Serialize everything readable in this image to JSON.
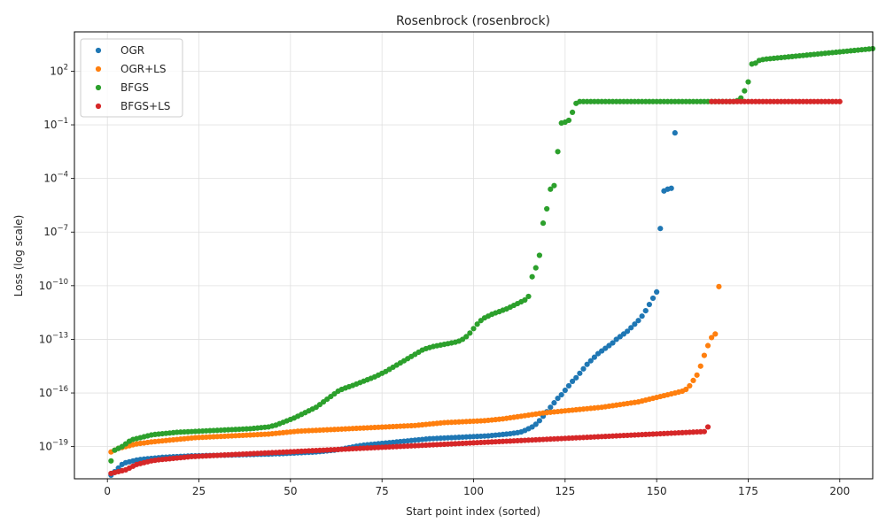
{
  "chart_data": {
    "type": "scatter",
    "title": "Rosenbrock (rosenbrock)",
    "xlabel": "Start point index (sorted)",
    "ylabel": "Loss (log scale)",
    "xlim": [
      -9,
      209
    ],
    "ylim_log10": [
      -20.8,
      4.2
    ],
    "yscale": "log",
    "grid": true,
    "legend_position": "top-left",
    "xticks": [
      0,
      25,
      50,
      75,
      100,
      125,
      150,
      175,
      200
    ],
    "xtick_labels": [
      "0",
      "25",
      "50",
      "75",
      "100",
      "125",
      "150",
      "175",
      "200"
    ],
    "yticks_log10": [
      -19,
      -16,
      -13,
      -10,
      -7,
      -4,
      -1,
      2
    ],
    "ytick_labels": [
      {
        "base": "10",
        "exp": "−19"
      },
      {
        "base": "10",
        "exp": "−16"
      },
      {
        "base": "10",
        "exp": "−13"
      },
      {
        "base": "10",
        "exp": "−10"
      },
      {
        "base": "10",
        "exp": "−7"
      },
      {
        "base": "10",
        "exp": "−4"
      },
      {
        "base": "10",
        "exp": "−1"
      },
      {
        "base": "10",
        "exp": "2"
      }
    ],
    "series": [
      {
        "name": "OGR",
        "color": "#1f77b4",
        "x_start": 1,
        "log10_y": [
          -20.6,
          -20.4,
          -20.2,
          -20.0,
          -19.9,
          -19.85,
          -19.8,
          -19.75,
          -19.72,
          -19.7,
          -19.68,
          -19.66,
          -19.64,
          -19.62,
          -19.6,
          -19.59,
          -19.58,
          -19.57,
          -19.56,
          -19.55,
          -19.54,
          -19.53,
          -19.52,
          -19.52,
          -19.51,
          -19.51,
          -19.5,
          -19.5,
          -19.49,
          -19.49,
          -19.48,
          -19.48,
          -19.47,
          -19.47,
          -19.46,
          -19.46,
          -19.45,
          -19.45,
          -19.44,
          -19.44,
          -19.43,
          -19.43,
          -19.42,
          -19.42,
          -19.41,
          -19.4,
          -19.4,
          -19.39,
          -19.38,
          -19.37,
          -19.36,
          -19.35,
          -19.34,
          -19.33,
          -19.32,
          -19.31,
          -19.3,
          -19.28,
          -19.26,
          -19.24,
          -19.22,
          -19.2,
          -19.17,
          -19.14,
          -19.1,
          -19.06,
          -19.02,
          -18.98,
          -18.95,
          -18.92,
          -18.9,
          -18.88,
          -18.86,
          -18.84,
          -18.82,
          -18.8,
          -18.78,
          -18.76,
          -18.74,
          -18.72,
          -18.7,
          -18.68,
          -18.66,
          -18.64,
          -18.62,
          -18.6,
          -18.58,
          -18.56,
          -18.55,
          -18.54,
          -18.53,
          -18.52,
          -18.51,
          -18.5,
          -18.49,
          -18.48,
          -18.47,
          -18.46,
          -18.45,
          -18.44,
          -18.43,
          -18.42,
          -18.41,
          -18.4,
          -18.38,
          -18.36,
          -18.34,
          -18.32,
          -18.3,
          -18.28,
          -18.25,
          -18.22,
          -18.18,
          -18.1,
          -18.0,
          -17.9,
          -17.75,
          -17.55,
          -17.3,
          -17.05,
          -16.8,
          -16.55,
          -16.3,
          -16.1,
          -15.85,
          -15.6,
          -15.35,
          -15.15,
          -14.9,
          -14.65,
          -14.4,
          -14.2,
          -14.0,
          -13.8,
          -13.65,
          -13.5,
          -13.35,
          -13.2,
          -13.0,
          -12.85,
          -12.7,
          -12.55,
          -12.35,
          -12.15,
          -11.95,
          -11.7,
          -11.4,
          -11.05,
          -10.7,
          -10.35,
          -6.8,
          -4.7,
          -4.6,
          -4.55,
          -1.45
        ]
      },
      {
        "name": "OGR+LS",
        "color": "#ff7f0e",
        "x_start": 1,
        "log10_y": [
          -19.3,
          -19.2,
          -19.1,
          -19.05,
          -19.0,
          -18.95,
          -18.9,
          -18.85,
          -18.82,
          -18.8,
          -18.77,
          -18.74,
          -18.72,
          -18.7,
          -18.68,
          -18.66,
          -18.64,
          -18.62,
          -18.6,
          -18.58,
          -18.56,
          -18.54,
          -18.52,
          -18.5,
          -18.49,
          -18.48,
          -18.47,
          -18.46,
          -18.45,
          -18.44,
          -18.43,
          -18.42,
          -18.41,
          -18.4,
          -18.39,
          -18.38,
          -18.37,
          -18.36,
          -18.35,
          -18.34,
          -18.33,
          -18.32,
          -18.31,
          -18.3,
          -18.28,
          -18.26,
          -18.24,
          -18.22,
          -18.2,
          -18.18,
          -18.16,
          -18.14,
          -18.13,
          -18.12,
          -18.11,
          -18.1,
          -18.09,
          -18.08,
          -18.07,
          -18.06,
          -18.05,
          -18.04,
          -18.03,
          -18.02,
          -18.01,
          -18.0,
          -17.99,
          -17.98,
          -17.97,
          -17.96,
          -17.95,
          -17.94,
          -17.93,
          -17.92,
          -17.91,
          -17.9,
          -17.89,
          -17.88,
          -17.87,
          -17.86,
          -17.85,
          -17.84,
          -17.83,
          -17.82,
          -17.8,
          -17.78,
          -17.76,
          -17.74,
          -17.72,
          -17.7,
          -17.68,
          -17.66,
          -17.65,
          -17.64,
          -17.63,
          -17.62,
          -17.61,
          -17.6,
          -17.59,
          -17.58,
          -17.57,
          -17.56,
          -17.55,
          -17.53,
          -17.51,
          -17.49,
          -17.47,
          -17.45,
          -17.42,
          -17.39,
          -17.36,
          -17.33,
          -17.3,
          -17.27,
          -17.24,
          -17.21,
          -17.18,
          -17.15,
          -17.12,
          -17.1,
          -17.08,
          -17.06,
          -17.04,
          -17.02,
          -17.0,
          -16.98,
          -16.96,
          -16.94,
          -16.92,
          -16.9,
          -16.88,
          -16.86,
          -16.84,
          -16.82,
          -16.8,
          -16.77,
          -16.74,
          -16.71,
          -16.68,
          -16.65,
          -16.62,
          -16.59,
          -16.56,
          -16.53,
          -16.5,
          -16.45,
          -16.4,
          -16.35,
          -16.3,
          -16.25,
          -16.2,
          -16.15,
          -16.1,
          -16.05,
          -16.0,
          -15.95,
          -15.9,
          -15.8,
          -15.6,
          -15.3,
          -15.0,
          -14.5,
          -13.9,
          -13.35,
          -12.9,
          -12.7,
          -10.05
        ]
      },
      {
        "name": "BFGS",
        "color": "#2ca02c",
        "x_start": 1,
        "log10_y": [
          -19.8,
          -19.2,
          -19.1,
          -19.0,
          -18.85,
          -18.7,
          -18.6,
          -18.55,
          -18.5,
          -18.45,
          -18.4,
          -18.35,
          -18.32,
          -18.3,
          -18.28,
          -18.26,
          -18.24,
          -18.22,
          -18.2,
          -18.19,
          -18.18,
          -18.17,
          -18.16,
          -18.15,
          -18.14,
          -18.13,
          -18.12,
          -18.11,
          -18.1,
          -18.09,
          -18.08,
          -18.07,
          -18.06,
          -18.05,
          -18.04,
          -18.03,
          -18.02,
          -18.01,
          -18.0,
          -17.98,
          -17.96,
          -17.94,
          -17.92,
          -17.9,
          -17.85,
          -17.8,
          -17.72,
          -17.64,
          -17.56,
          -17.48,
          -17.4,
          -17.3,
          -17.2,
          -17.1,
          -17.0,
          -16.9,
          -16.8,
          -16.65,
          -16.5,
          -16.35,
          -16.2,
          -16.05,
          -15.9,
          -15.8,
          -15.72,
          -15.65,
          -15.58,
          -15.5,
          -15.42,
          -15.34,
          -15.26,
          -15.18,
          -15.1,
          -15.0,
          -14.9,
          -14.8,
          -14.68,
          -14.56,
          -14.44,
          -14.32,
          -14.2,
          -14.08,
          -13.96,
          -13.84,
          -13.72,
          -13.6,
          -13.52,
          -13.46,
          -13.4,
          -13.36,
          -13.32,
          -13.28,
          -13.24,
          -13.2,
          -13.16,
          -13.1,
          -13.0,
          -12.85,
          -12.65,
          -12.4,
          -12.15,
          -11.95,
          -11.8,
          -11.7,
          -11.6,
          -11.52,
          -11.45,
          -11.37,
          -11.3,
          -11.2,
          -11.1,
          -11.0,
          -10.9,
          -10.8,
          -10.6,
          -9.5,
          -9.0,
          -8.3,
          -6.5,
          -5.7,
          -4.6,
          -4.4,
          -2.5,
          -0.9,
          -0.85,
          -0.75,
          -0.3,
          0.2,
          0.3,
          0.3,
          0.3,
          0.3,
          0.3,
          0.3,
          0.3,
          0.3,
          0.3,
          0.3,
          0.3,
          0.3,
          0.3,
          0.3,
          0.3,
          0.3,
          0.3,
          0.3,
          0.3,
          0.3,
          0.3,
          0.3,
          0.3,
          0.3,
          0.3,
          0.3,
          0.3,
          0.3,
          0.3,
          0.3,
          0.3,
          0.3,
          0.3,
          0.3,
          0.3,
          0.3,
          0.3,
          0.3,
          0.3,
          0.3,
          0.3,
          0.3,
          0.3,
          0.35,
          0.5,
          0.9,
          1.4,
          2.4,
          2.45,
          2.6,
          2.65,
          2.68,
          2.7,
          2.72,
          2.74,
          2.76,
          2.78,
          2.8,
          2.82,
          2.84,
          2.86,
          2.88,
          2.9,
          2.92,
          2.94,
          2.96,
          2.98,
          3.0,
          3.02,
          3.04,
          3.06,
          3.08,
          3.1,
          3.12,
          3.14,
          3.16,
          3.18,
          3.2,
          3.22,
          3.24,
          3.26
        ]
      },
      {
        "name": "BFGS+LS",
        "color": "#d62728",
        "x_start": 1,
        "log10_y": [
          -20.5,
          -20.45,
          -20.4,
          -20.35,
          -20.3,
          -20.2,
          -20.1,
          -20.0,
          -19.95,
          -19.9,
          -19.85,
          -19.8,
          -19.77,
          -19.74,
          -19.72,
          -19.7,
          -19.68,
          -19.66,
          -19.64,
          -19.62,
          -19.6,
          -19.58,
          -19.56,
          -19.55,
          -19.54,
          -19.53,
          -19.52,
          -19.51,
          -19.5,
          -19.49,
          -19.48,
          -19.47,
          -19.46,
          -19.45,
          -19.44,
          -19.43,
          -19.42,
          -19.41,
          -19.4,
          -19.39,
          -19.38,
          -19.37,
          -19.36,
          -19.35,
          -19.34,
          -19.33,
          -19.32,
          -19.31,
          -19.3,
          -19.29,
          -19.28,
          -19.27,
          -19.26,
          -19.25,
          -19.24,
          -19.23,
          -19.22,
          -19.21,
          -19.2,
          -19.19,
          -19.18,
          -19.17,
          -19.16,
          -19.15,
          -19.14,
          -19.13,
          -19.12,
          -19.11,
          -19.1,
          -19.09,
          -19.08,
          -19.07,
          -19.06,
          -19.05,
          -19.04,
          -19.03,
          -19.02,
          -19.01,
          -19.0,
          -18.99,
          -18.98,
          -18.97,
          -18.96,
          -18.95,
          -18.94,
          -18.93,
          -18.92,
          -18.91,
          -18.9,
          -18.89,
          -18.88,
          -18.87,
          -18.86,
          -18.85,
          -18.84,
          -18.83,
          -18.82,
          -18.81,
          -18.8,
          -18.79,
          -18.78,
          -18.77,
          -18.76,
          -18.75,
          -18.74,
          -18.73,
          -18.72,
          -18.71,
          -18.7,
          -18.69,
          -18.68,
          -18.67,
          -18.66,
          -18.65,
          -18.64,
          -18.63,
          -18.62,
          -18.61,
          -18.6,
          -18.59,
          -18.58,
          -18.57,
          -18.56,
          -18.55,
          -18.54,
          -18.53,
          -18.52,
          -18.51,
          -18.5,
          -18.49,
          -18.48,
          -18.47,
          -18.46,
          -18.45,
          -18.44,
          -18.43,
          -18.42,
          -18.41,
          -18.4,
          -18.39,
          -18.38,
          -18.37,
          -18.36,
          -18.35,
          -18.34,
          -18.33,
          -18.32,
          -18.31,
          -18.3,
          -18.29,
          -18.28,
          -18.27,
          -18.26,
          -18.25,
          -18.24,
          -18.23,
          -18.22,
          -18.21,
          -18.2,
          -18.19,
          -18.18,
          -18.17,
          -18.16,
          -17.9,
          0.3,
          0.3,
          0.3,
          0.3,
          0.3,
          0.3,
          0.3,
          0.3,
          0.3,
          0.3,
          0.3,
          0.3,
          0.3,
          0.3,
          0.3,
          0.3,
          0.3,
          0.3,
          0.3,
          0.3,
          0.3,
          0.3,
          0.3,
          0.3,
          0.3,
          0.3,
          0.3,
          0.3,
          0.3,
          0.3,
          0.3,
          0.3,
          0.3,
          0.3,
          0.3,
          0.3
        ],
        "x_indices_jump": {
          "from_index": 164,
          "x_values_after": [
            165,
            166,
            167,
            168,
            169,
            170,
            171,
            172,
            173,
            174,
            175,
            176,
            177,
            178,
            179,
            180,
            181,
            182,
            183,
            184,
            185,
            186,
            187,
            188,
            189,
            190,
            191,
            192,
            193,
            194,
            195,
            196,
            197,
            198,
            199,
            200
          ]
        }
      }
    ]
  }
}
